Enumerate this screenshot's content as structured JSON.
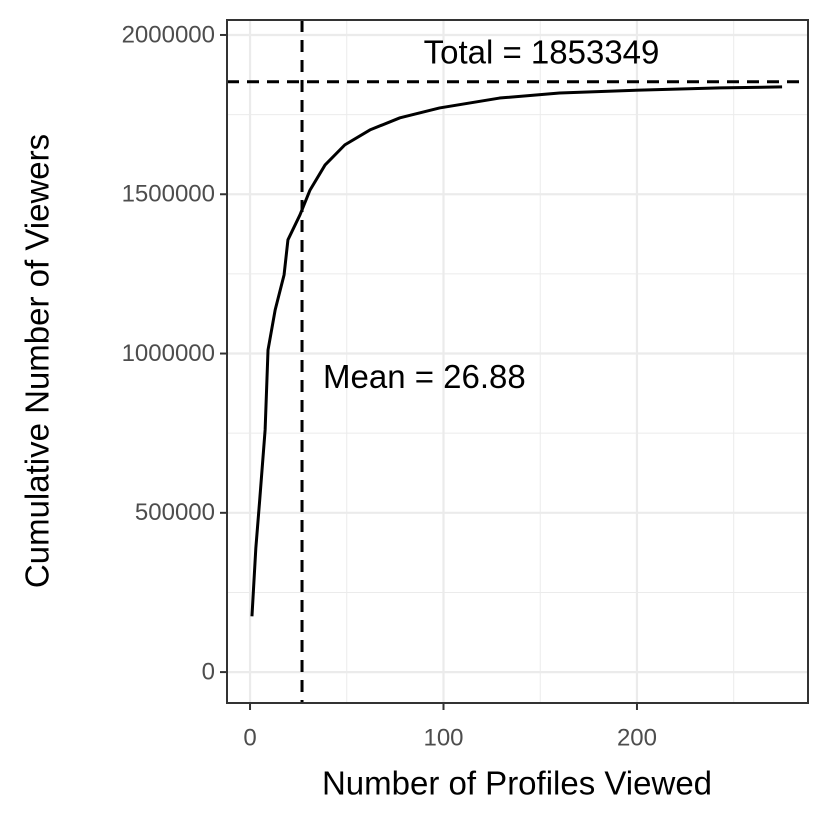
{
  "chart_data": {
    "type": "line",
    "x_label": "Number of Profiles Viewed",
    "y_label": "Cumulative Number of Viewers",
    "x": [
      1,
      3,
      5,
      7.8,
      9.3,
      13,
      17.6,
      19.6,
      25.8,
      31,
      38.8,
      49,
      62,
      77.5,
      98,
      129,
      160,
      201.5,
      243,
      275
    ],
    "series": [
      {
        "name": "Cumulative viewers",
        "color": "#000000",
        "values": [
          175000,
          389000,
          540000,
          760000,
          1011000,
          1137000,
          1247000,
          1357000,
          1435000,
          1513000,
          1592000,
          1655000,
          1702000,
          1740000,
          1771000,
          1802000,
          1818000,
          1827000,
          1834000,
          1837000
        ]
      }
    ],
    "hline": {
      "value": 1853349,
      "label": "Total =  1853349"
    },
    "vline": {
      "value": 26.88,
      "label": "Mean =  26.88"
    },
    "xlim": [
      -11.9,
      288.4
    ],
    "ylim": [
      -97000,
      2047000
    ],
    "xticks": [
      0,
      100,
      200
    ],
    "yticks": [
      0,
      500000,
      1000000,
      1500000,
      2000000
    ],
    "xminor": [
      50,
      150,
      250
    ],
    "yminor": [
      250000,
      750000,
      1250000,
      1750000
    ],
    "grid": true
  }
}
